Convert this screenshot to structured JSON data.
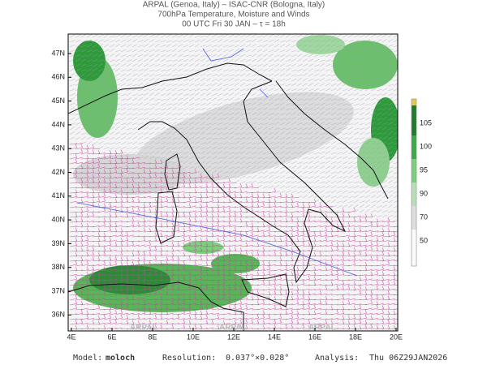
{
  "header": {
    "line1": "ARPAL (Genoa, Italy)  –  ISAC-CNR (Bologna, Italy)",
    "line2": "700hPa Temperature, Moisture and Winds",
    "line3": "00 UTC Fri 30 JAN  –  τ = 18h"
  },
  "map": {
    "lon_ticks": [
      "4E",
      "6E",
      "8E",
      "10E",
      "12E",
      "14E",
      "16E",
      "18E",
      "20E"
    ],
    "lat_ticks": [
      "47N",
      "46N",
      "45N",
      "44N",
      "43N",
      "42N",
      "41N",
      "40N",
      "39N",
      "38N",
      "37N",
      "36N"
    ],
    "watermark": "ARPAL"
  },
  "colorbar": {
    "ticks": [
      "105",
      "100",
      "95",
      "90",
      "70",
      "50"
    ]
  },
  "footer": {
    "model_label": "Model:",
    "model": "moloch",
    "resolution_label": "Resolution:",
    "resolution": "0.037°×0.028°",
    "analysis_label": "Analysis:",
    "analysis": "Thu 06Z29JAN2026"
  }
}
